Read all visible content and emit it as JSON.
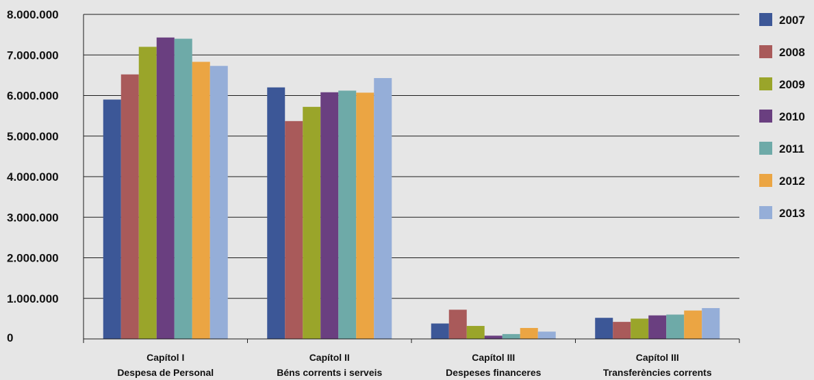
{
  "chart_data": {
    "type": "bar",
    "title": "",
    "xlabel": "",
    "ylabel": "",
    "ylim": [
      0,
      8000000
    ],
    "grid": true,
    "legend_position": "right",
    "y_ticks": [
      {
        "value": 0,
        "label": "0"
      },
      {
        "value": 1000000,
        "label": "1.000.000"
      },
      {
        "value": 2000000,
        "label": "2.000.000"
      },
      {
        "value": 3000000,
        "label": "3.000.000"
      },
      {
        "value": 4000000,
        "label": "4.000.000"
      },
      {
        "value": 5000000,
        "label": "5.000.000"
      },
      {
        "value": 6000000,
        "label": "6.000.000"
      },
      {
        "value": 7000000,
        "label": "7.000.000"
      },
      {
        "value": 8000000,
        "label": "8.000.000"
      }
    ],
    "categories": [
      [
        "Capítol I",
        "Despesa de Personal"
      ],
      [
        "Capítol II",
        "Béns corrents i serveis"
      ],
      [
        "Capítol III",
        "Despeses financeres"
      ],
      [
        "Capítol III",
        "Transferències corrents"
      ]
    ],
    "series": [
      {
        "name": "2007",
        "color": "#3c5797",
        "values": [
          5900000,
          6200000,
          380000,
          520000
        ]
      },
      {
        "name": "2008",
        "color": "#a95a5a",
        "values": [
          6520000,
          5370000,
          720000,
          420000
        ]
      },
      {
        "name": "2009",
        "color": "#9aa52a",
        "values": [
          7200000,
          5720000,
          320000,
          500000
        ]
      },
      {
        "name": "2010",
        "color": "#6a3f80",
        "values": [
          7430000,
          6080000,
          80000,
          580000
        ]
      },
      {
        "name": "2011",
        "color": "#6eaaa8",
        "values": [
          7400000,
          6120000,
          120000,
          600000
        ]
      },
      {
        "name": "2012",
        "color": "#eba543",
        "values": [
          6830000,
          6070000,
          270000,
          700000
        ]
      },
      {
        "name": "2013",
        "color": "#95aed8",
        "values": [
          6730000,
          6430000,
          180000,
          760000
        ]
      }
    ]
  }
}
